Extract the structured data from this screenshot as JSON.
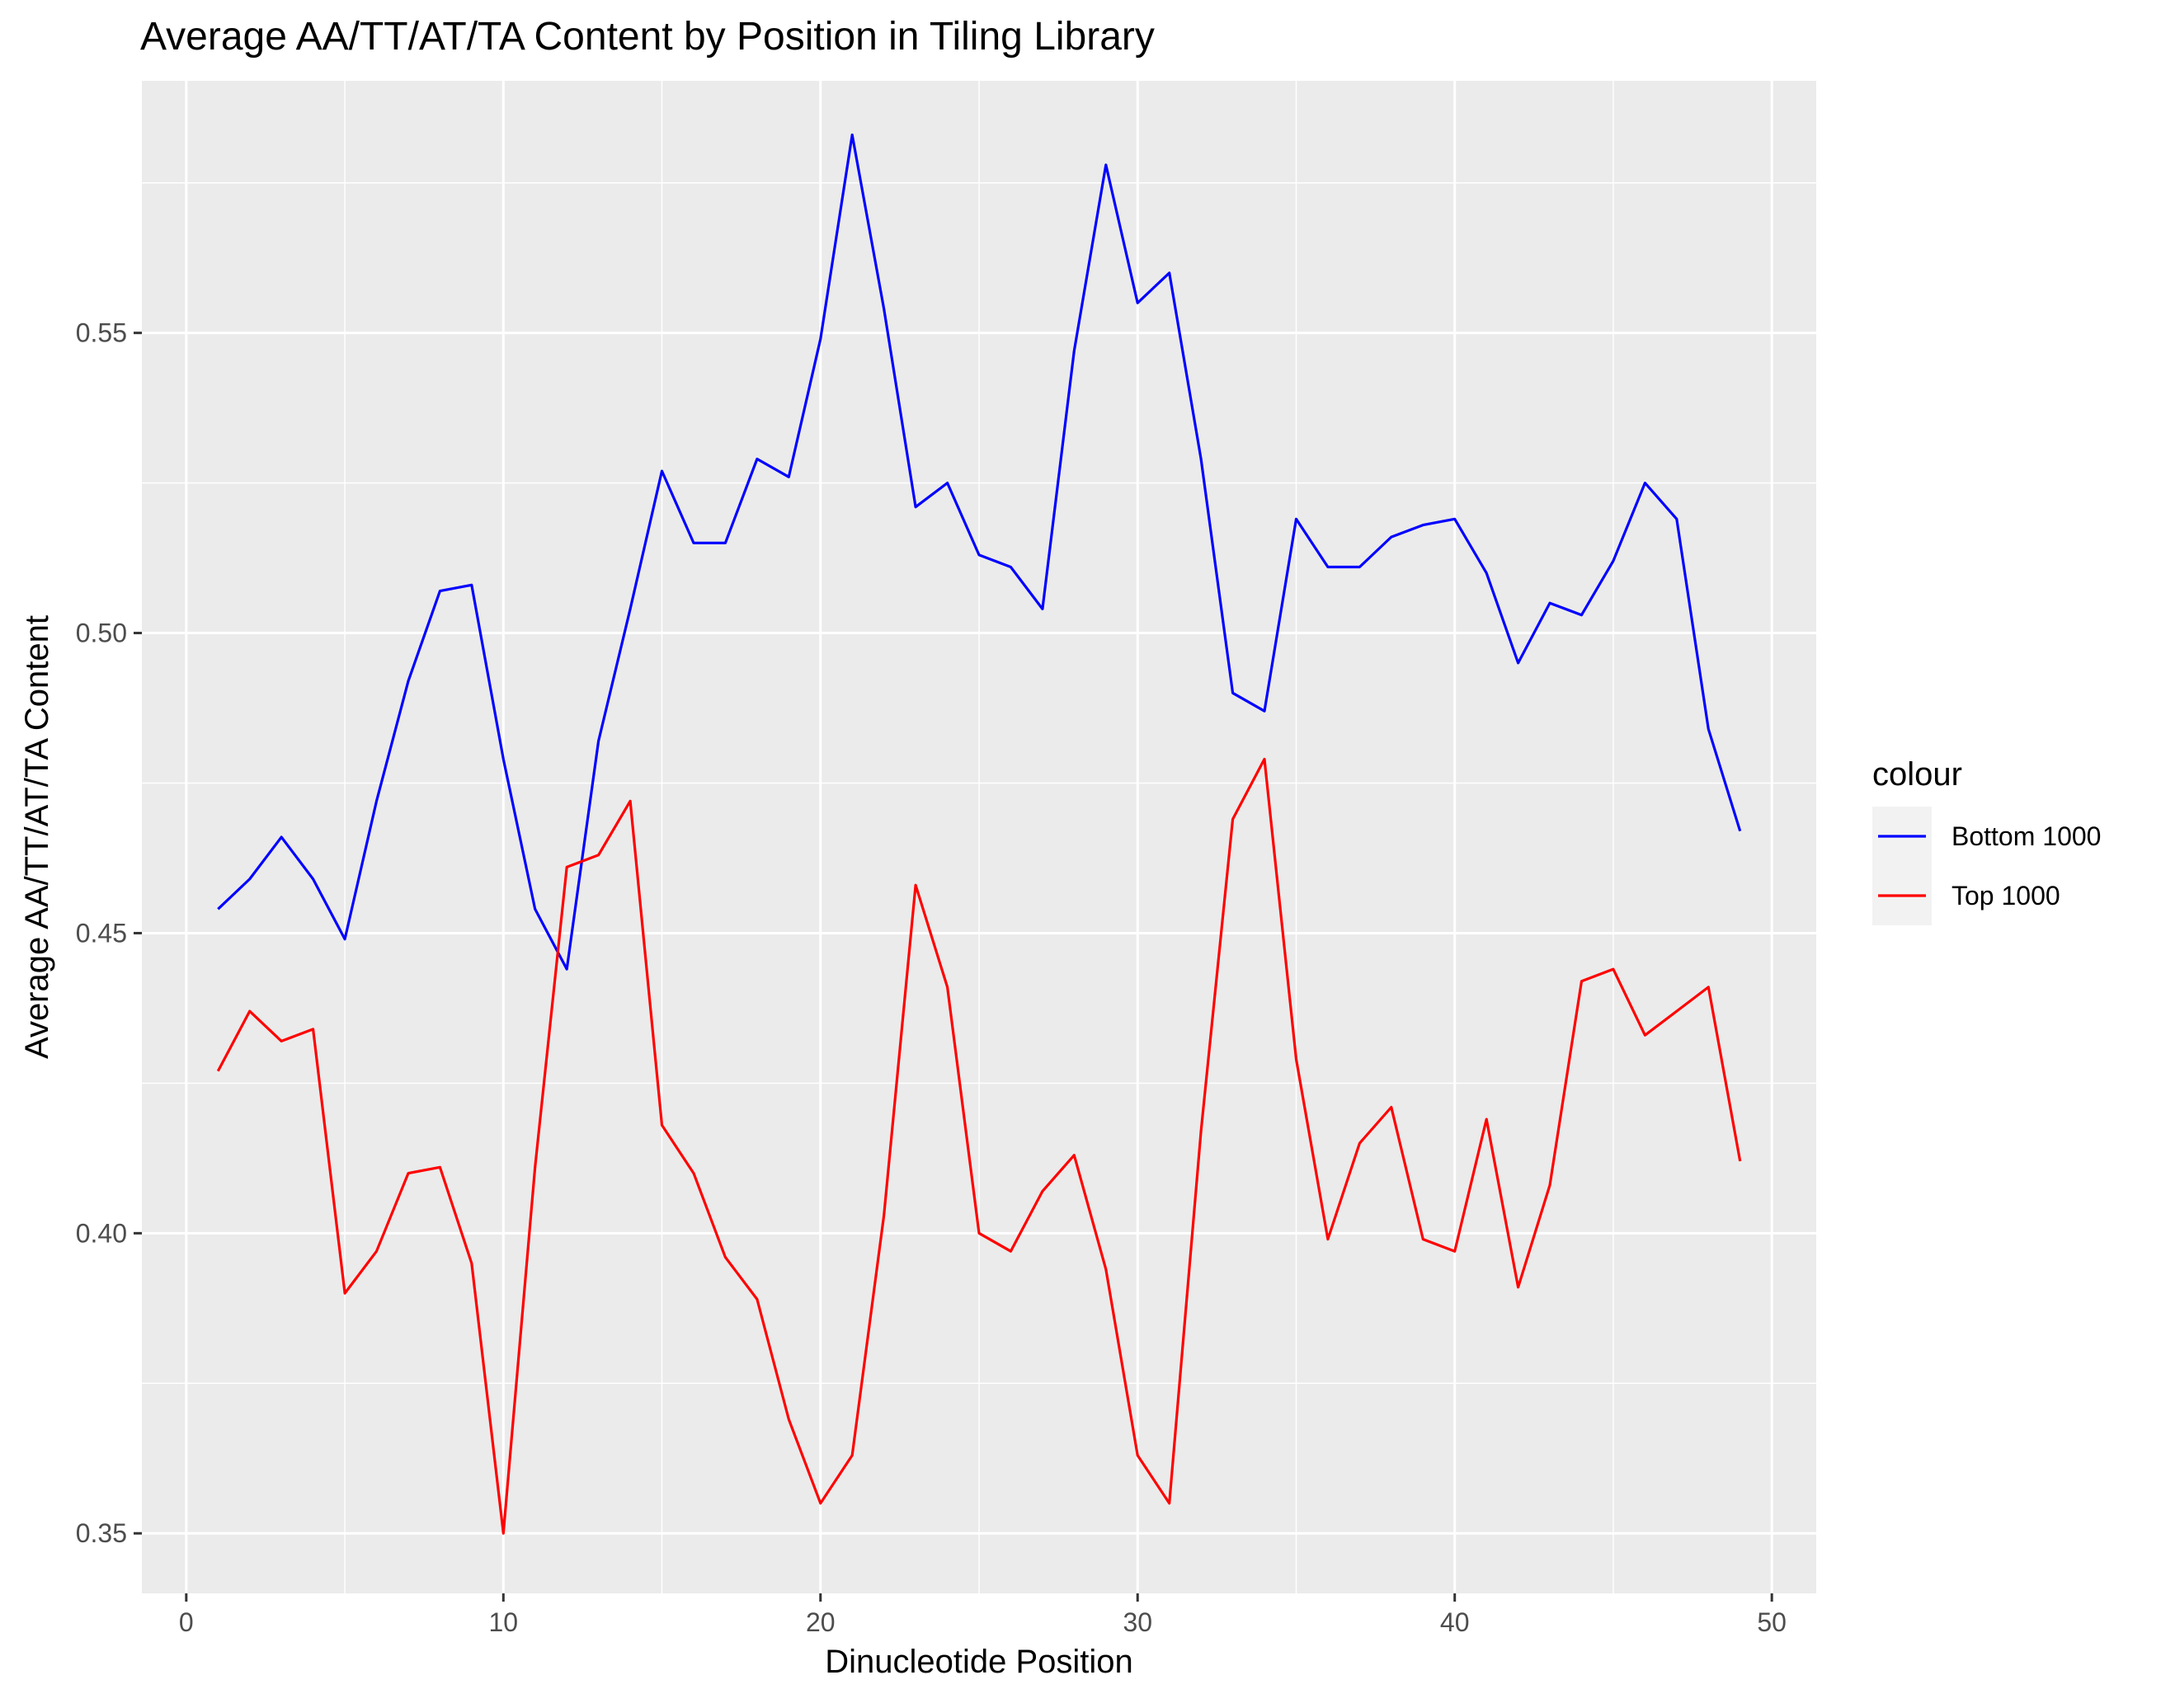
{
  "chart_data": {
    "type": "line",
    "title": "Average AA/TT/AT/TA Content by Position in Tiling Library",
    "xlabel": "Dinucleotide Position",
    "ylabel": "Average AA/TT/AT/TA Content",
    "xlim": [
      -1.4,
      51.4
    ],
    "ylim": [
      0.34,
      0.592
    ],
    "xticks": [
      0,
      10,
      20,
      30,
      40,
      50
    ],
    "xtick_labels": [
      "0",
      "10",
      "20",
      "30",
      "40",
      "50"
    ],
    "yticks": [
      0.35,
      0.4,
      0.45,
      0.5,
      0.55
    ],
    "ytick_labels": [
      "0.35",
      "0.40",
      "0.45",
      "0.50",
      "0.55"
    ],
    "grid": true,
    "background": "#ebebeb",
    "legend": {
      "title": "colour",
      "position": "right"
    },
    "x": [
      1,
      2,
      3,
      4,
      5,
      6,
      7,
      8,
      9,
      10,
      11,
      12,
      13,
      14,
      15,
      16,
      17,
      18,
      19,
      20,
      21,
      22,
      23,
      24,
      25,
      26,
      27,
      28,
      29,
      30,
      31,
      32,
      33,
      34,
      35,
      36,
      37,
      38,
      39,
      40,
      41,
      42,
      43,
      44,
      45,
      46,
      47,
      48,
      49
    ],
    "series": [
      {
        "name": "Bottom 1000",
        "color": "#0000ff",
        "values": [
          0.454,
          0.459,
          0.466,
          0.459,
          0.449,
          0.472,
          0.492,
          0.507,
          0.508,
          0.479,
          0.454,
          0.444,
          0.482,
          0.504,
          0.527,
          0.515,
          0.515,
          0.529,
          0.526,
          0.549,
          0.583,
          0.554,
          0.521,
          0.525,
          0.513,
          0.511,
          0.504,
          0.547,
          0.578,
          0.555,
          0.56,
          0.529,
          0.49,
          0.487,
          0.519,
          0.511,
          0.511,
          0.516,
          0.518,
          0.519,
          0.51,
          0.495,
          0.505,
          0.503,
          0.512,
          0.525,
          0.519,
          0.484,
          0.467
        ]
      },
      {
        "name": "Top 1000",
        "color": "#ff0000",
        "values": [
          0.427,
          0.437,
          0.432,
          0.434,
          0.39,
          0.397,
          0.41,
          0.411,
          0.395,
          0.35,
          0.411,
          0.461,
          0.463,
          0.472,
          0.418,
          0.41,
          0.396,
          0.389,
          0.369,
          0.355,
          0.363,
          0.403,
          0.458,
          0.441,
          0.4,
          0.397,
          0.407,
          0.413,
          0.394,
          0.363,
          0.355,
          0.417,
          0.469,
          0.479,
          0.429,
          0.399,
          0.415,
          0.421,
          0.399,
          0.397,
          0.419,
          0.391,
          0.408,
          0.442,
          0.444,
          0.433,
          0.437,
          0.441,
          0.412
        ]
      }
    ]
  }
}
